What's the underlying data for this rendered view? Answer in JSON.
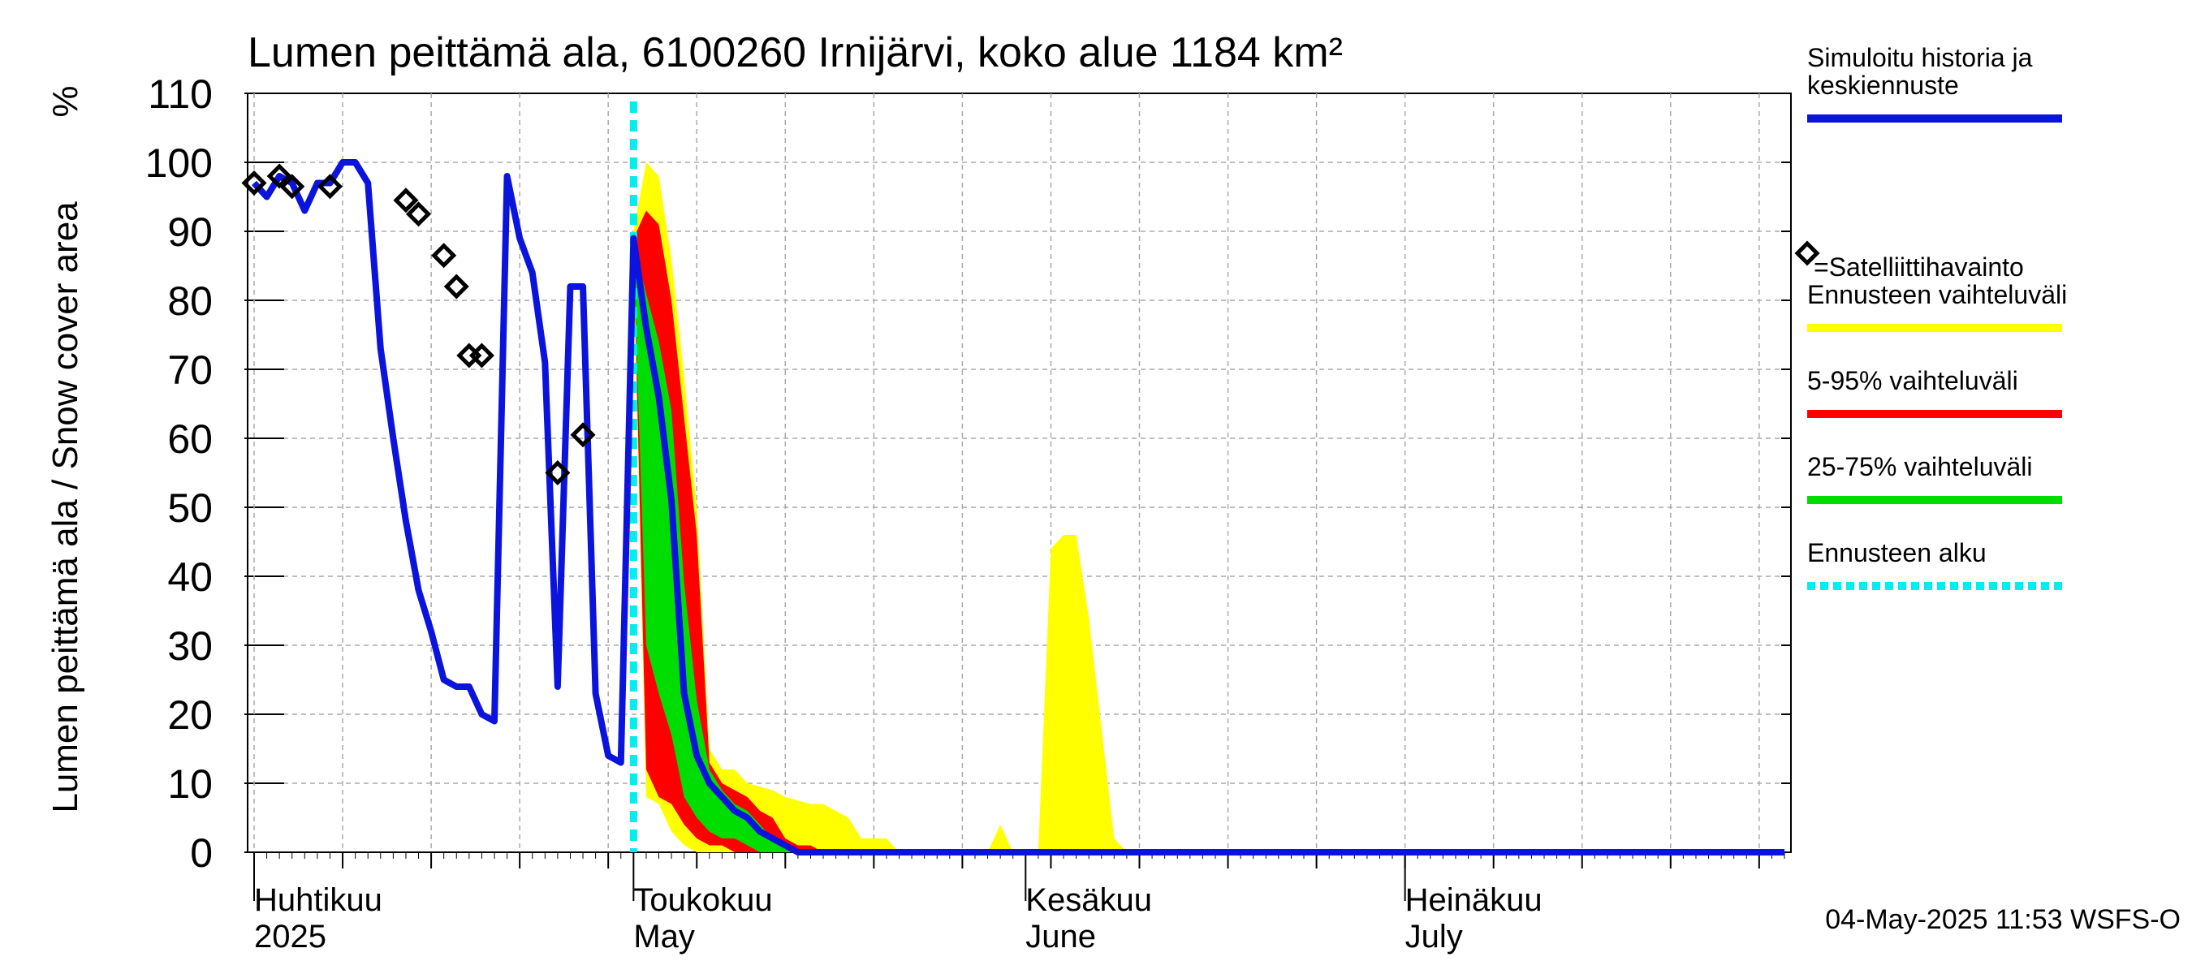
{
  "chart_data": {
    "type": "area",
    "title": "Lumen peittämä ala, 6100260 Irnijärvi, koko alue 1184 km²",
    "ylabel": "Lumen peittämä ala / Snow cover area",
    "yunit": "%",
    "ylim": [
      0,
      110
    ],
    "yticks": [
      0,
      10,
      20,
      30,
      40,
      50,
      60,
      70,
      80,
      90,
      100,
      110
    ],
    "xlim": [
      "2025-04-01",
      "2025-07-31"
    ],
    "grid": true,
    "legend_position": "right",
    "forecast_start": "2025-05-01",
    "month_labels": [
      {
        "date": "2025-04-01",
        "fi": "Huhtikuu",
        "en": "2025"
      },
      {
        "date": "2025-05-01",
        "fi": "Toukokuu",
        "en": "May"
      },
      {
        "date": "2025-06-01",
        "fi": "Kesäkuu",
        "en": "June"
      },
      {
        "date": "2025-07-01",
        "fi": "Heinäkuu",
        "en": "July"
      }
    ],
    "timestamp": "04-May-2025 11:53 WSFS-O",
    "colors": {
      "history": "#0a14dc",
      "observation": "#000000",
      "full_range": "#ffff00",
      "p5_95": "#ff0000",
      "p25_75": "#00dd00",
      "forecast_start": "#00eeee",
      "grid": "#aaaaaa"
    },
    "legend": [
      {
        "key": "history",
        "label": "Simuloitu historia ja keskiennuste",
        "style": "line",
        "color": "#0a14dc"
      },
      {
        "key": "observation",
        "label": "=Satelliittihavainto",
        "style": "diamond",
        "color": "#000000"
      },
      {
        "key": "full_range",
        "label": "Ennusteen vaihteluväli",
        "style": "line",
        "color": "#ffff00"
      },
      {
        "key": "p5_95",
        "label": "5-95% vaihteluväli",
        "style": "line",
        "color": "#ff0000"
      },
      {
        "key": "p25_75",
        "label": "25-75% vaihteluväli",
        "style": "line",
        "color": "#00dd00"
      },
      {
        "key": "forecast_start",
        "label": "Ennusteen alku",
        "style": "dashed",
        "color": "#00eeee"
      }
    ],
    "series": [
      {
        "key": "history",
        "name": "Simuloitu historia ja keskiennuste",
        "points": [
          [
            "2025-04-01",
            97
          ],
          [
            "2025-04-02",
            95
          ],
          [
            "2025-04-03",
            98
          ],
          [
            "2025-04-04",
            97
          ],
          [
            "2025-04-05",
            93
          ],
          [
            "2025-04-06",
            97
          ],
          [
            "2025-04-07",
            97
          ],
          [
            "2025-04-08",
            100
          ],
          [
            "2025-04-09",
            100
          ],
          [
            "2025-04-10",
            97
          ],
          [
            "2025-04-11",
            73
          ],
          [
            "2025-04-12",
            60
          ],
          [
            "2025-04-13",
            48
          ],
          [
            "2025-04-14",
            38
          ],
          [
            "2025-04-15",
            32
          ],
          [
            "2025-04-16",
            25
          ],
          [
            "2025-04-17",
            24
          ],
          [
            "2025-04-18",
            24
          ],
          [
            "2025-04-19",
            20
          ],
          [
            "2025-04-20",
            19
          ],
          [
            "2025-04-21",
            98
          ],
          [
            "2025-04-22",
            89
          ],
          [
            "2025-04-23",
            84
          ],
          [
            "2025-04-24",
            71
          ],
          [
            "2025-04-25",
            24
          ],
          [
            "2025-04-26",
            82
          ],
          [
            "2025-04-27",
            82
          ],
          [
            "2025-04-28",
            23
          ],
          [
            "2025-04-29",
            14
          ],
          [
            "2025-04-30",
            13
          ],
          [
            "2025-05-01",
            89
          ],
          [
            "2025-05-02",
            76
          ],
          [
            "2025-05-03",
            66
          ],
          [
            "2025-05-04",
            51
          ],
          [
            "2025-05-05",
            23
          ],
          [
            "2025-05-06",
            14
          ],
          [
            "2025-05-07",
            10
          ],
          [
            "2025-05-08",
            8
          ],
          [
            "2025-05-09",
            6
          ],
          [
            "2025-05-10",
            5
          ],
          [
            "2025-05-11",
            3
          ],
          [
            "2025-05-12",
            2
          ],
          [
            "2025-05-13",
            1
          ],
          [
            "2025-05-14",
            0
          ],
          [
            "2025-07-31",
            0
          ]
        ]
      },
      {
        "key": "observation",
        "name": "Satelliittihavainto",
        "points": [
          [
            "2025-04-01",
            97
          ],
          [
            "2025-04-03",
            98
          ],
          [
            "2025-04-04",
            96.5
          ],
          [
            "2025-04-07",
            96.5
          ],
          [
            "2025-04-13",
            94.5
          ],
          [
            "2025-04-14",
            92.5
          ],
          [
            "2025-04-16",
            86.5
          ],
          [
            "2025-04-17",
            82
          ],
          [
            "2025-04-18",
            72
          ],
          [
            "2025-04-19",
            72
          ],
          [
            "2025-04-25",
            55
          ],
          [
            "2025-04-27",
            60.5
          ]
        ]
      },
      {
        "key": "full_range",
        "name": "Ennusteen vaihteluväli",
        "upper": [
          [
            "2025-05-01",
            90
          ],
          [
            "2025-05-02",
            100
          ],
          [
            "2025-05-03",
            98
          ],
          [
            "2025-05-04",
            86
          ],
          [
            "2025-05-05",
            69
          ],
          [
            "2025-05-06",
            50
          ],
          [
            "2025-05-07",
            15
          ],
          [
            "2025-05-08",
            12
          ],
          [
            "2025-05-09",
            12
          ],
          [
            "2025-05-10",
            10
          ],
          [
            "2025-05-12",
            9
          ],
          [
            "2025-05-13",
            8
          ],
          [
            "2025-05-15",
            7
          ],
          [
            "2025-05-16",
            7
          ],
          [
            "2025-05-17",
            6
          ],
          [
            "2025-05-18",
            5
          ],
          [
            "2025-05-19",
            2
          ],
          [
            "2025-05-21",
            2
          ],
          [
            "2025-05-22",
            0
          ],
          [
            "2025-05-29",
            0
          ],
          [
            "2025-05-30",
            4
          ],
          [
            "2025-05-31",
            0
          ],
          [
            "2025-06-02",
            0
          ],
          [
            "2025-06-03",
            44
          ],
          [
            "2025-06-04",
            46
          ],
          [
            "2025-06-05",
            46
          ],
          [
            "2025-06-06",
            34
          ],
          [
            "2025-06-07",
            18
          ],
          [
            "2025-06-08",
            2
          ],
          [
            "2025-06-09",
            0
          ],
          [
            "2025-07-31",
            0
          ]
        ],
        "lower": [
          [
            "2025-05-01",
            85
          ],
          [
            "2025-05-02",
            8
          ],
          [
            "2025-05-03",
            7
          ],
          [
            "2025-05-04",
            3
          ],
          [
            "2025-05-05",
            1
          ],
          [
            "2025-05-06",
            0
          ],
          [
            "2025-07-31",
            0
          ]
        ]
      },
      {
        "key": "p5_95",
        "name": "5-95% vaihteluväli",
        "upper": [
          [
            "2025-05-01",
            89
          ],
          [
            "2025-05-02",
            93
          ],
          [
            "2025-05-03",
            91
          ],
          [
            "2025-05-04",
            80
          ],
          [
            "2025-05-05",
            63
          ],
          [
            "2025-05-06",
            46
          ],
          [
            "2025-05-07",
            13
          ],
          [
            "2025-05-08",
            10
          ],
          [
            "2025-05-09",
            9
          ],
          [
            "2025-05-10",
            8
          ],
          [
            "2025-05-11",
            6
          ],
          [
            "2025-05-12",
            5
          ],
          [
            "2025-05-13",
            2
          ],
          [
            "2025-05-14",
            1
          ],
          [
            "2025-05-15",
            1
          ],
          [
            "2025-05-16",
            0
          ],
          [
            "2025-07-31",
            0
          ]
        ],
        "lower": [
          [
            "2025-05-01",
            88
          ],
          [
            "2025-05-02",
            12
          ],
          [
            "2025-05-03",
            8
          ],
          [
            "2025-05-04",
            7
          ],
          [
            "2025-05-05",
            4
          ],
          [
            "2025-05-06",
            2
          ],
          [
            "2025-05-07",
            1
          ],
          [
            "2025-05-08",
            1
          ],
          [
            "2025-05-09",
            0
          ],
          [
            "2025-07-31",
            0
          ]
        ]
      },
      {
        "key": "p25_75",
        "name": "25-75% vaihteluväli",
        "upper": [
          [
            "2025-05-01",
            88
          ],
          [
            "2025-05-02",
            81
          ],
          [
            "2025-05-03",
            74
          ],
          [
            "2025-05-04",
            64
          ],
          [
            "2025-05-05",
            39
          ],
          [
            "2025-05-06",
            22
          ],
          [
            "2025-05-07",
            12
          ],
          [
            "2025-05-08",
            9
          ],
          [
            "2025-05-09",
            7
          ],
          [
            "2025-05-10",
            6
          ],
          [
            "2025-05-11",
            4
          ],
          [
            "2025-05-12",
            2
          ],
          [
            "2025-05-13",
            1
          ],
          [
            "2025-05-14",
            0
          ],
          [
            "2025-07-31",
            0
          ]
        ],
        "lower": [
          [
            "2025-05-01",
            87
          ],
          [
            "2025-05-02",
            30
          ],
          [
            "2025-05-03",
            23
          ],
          [
            "2025-05-04",
            17
          ],
          [
            "2025-05-05",
            8
          ],
          [
            "2025-05-06",
            5
          ],
          [
            "2025-05-07",
            3
          ],
          [
            "2025-05-08",
            2
          ],
          [
            "2025-05-09",
            2
          ],
          [
            "2025-05-10",
            1
          ],
          [
            "2025-05-11",
            0
          ],
          [
            "2025-07-31",
            0
          ]
        ]
      }
    ]
  }
}
